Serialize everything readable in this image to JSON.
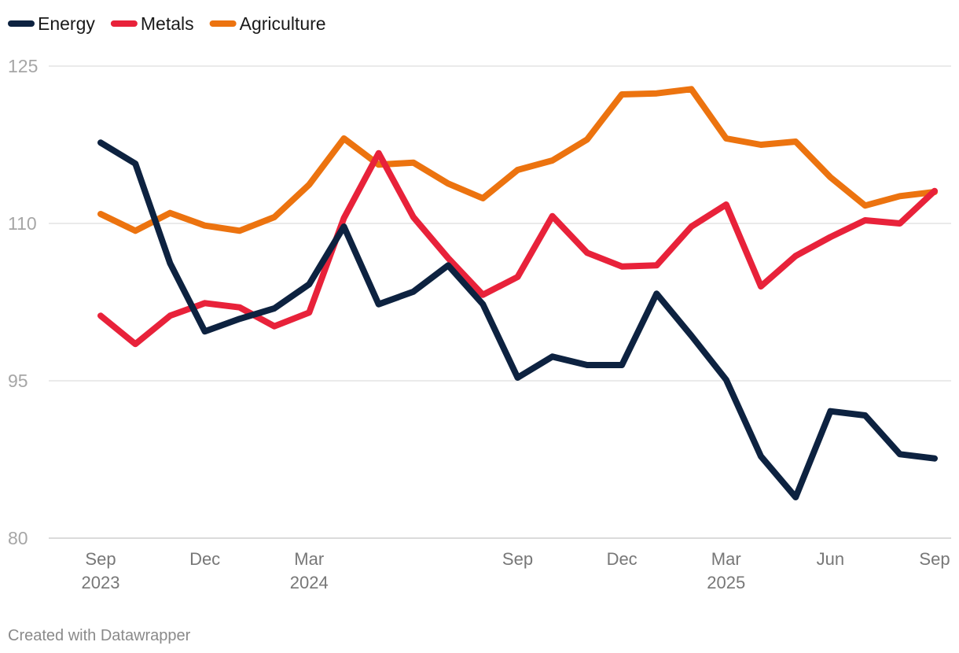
{
  "chart_data": {
    "type": "line",
    "title": "",
    "xlabel": "",
    "ylabel": "",
    "ylim": [
      80,
      125
    ],
    "yticks": [
      80,
      95,
      110,
      125
    ],
    "grid": true,
    "legend_position": "top-left",
    "x": [
      "2023-09",
      "2023-10",
      "2023-11",
      "2023-12",
      "2024-01",
      "2024-02",
      "2024-03",
      "2024-04",
      "2024-05",
      "2024-06",
      "2024-07",
      "2024-08",
      "2024-09",
      "2024-10",
      "2024-11",
      "2024-12",
      "2025-01",
      "2025-02",
      "2025-03",
      "2025-04",
      "2025-05",
      "2025-06",
      "2025-07",
      "2025-08",
      "2025-09"
    ],
    "xticks": [
      {
        "index": 0,
        "label": "Sep",
        "year": "2023"
      },
      {
        "index": 3,
        "label": "Dec",
        "year": ""
      },
      {
        "index": 6,
        "label": "Mar",
        "year": "2024"
      },
      {
        "index": 12,
        "label": "Sep",
        "year": ""
      },
      {
        "index": 15,
        "label": "Dec",
        "year": ""
      },
      {
        "index": 18,
        "label": "Mar",
        "year": "2025"
      },
      {
        "index": 21,
        "label": "Jun",
        "year": ""
      },
      {
        "index": 24,
        "label": "Sep",
        "year": ""
      }
    ],
    "series": [
      {
        "name": "Energy",
        "color": "#0d2240",
        "values": [
          117.7,
          115.7,
          106.2,
          99.7,
          100.9,
          101.9,
          104.2,
          109.7,
          102.3,
          103.5,
          106.0,
          102.3,
          95.3,
          97.3,
          96.5,
          96.5,
          103.3,
          99.3,
          95.1,
          87.8,
          83.9,
          92.1,
          91.7,
          88.0,
          87.6
        ]
      },
      {
        "name": "Metals",
        "color": "#e8223a",
        "values": [
          101.2,
          98.5,
          101.2,
          102.4,
          102.0,
          100.2,
          101.5,
          110.5,
          116.7,
          110.6,
          106.7,
          103.2,
          104.9,
          110.7,
          107.2,
          105.9,
          106.0,
          109.7,
          111.8,
          104.0,
          106.9,
          108.7,
          110.3,
          110.0,
          113.1
        ]
      },
      {
        "name": "Agriculture",
        "color": "#ec730f",
        "values": [
          110.9,
          109.3,
          111.0,
          109.8,
          109.3,
          110.6,
          113.7,
          118.1,
          115.6,
          115.8,
          113.8,
          112.4,
          115.1,
          116.0,
          118.0,
          122.3,
          122.4,
          122.8,
          118.1,
          117.5,
          117.8,
          114.4,
          111.7,
          112.6,
          113.0
        ]
      }
    ],
    "credit": "Created with Datawrapper"
  }
}
